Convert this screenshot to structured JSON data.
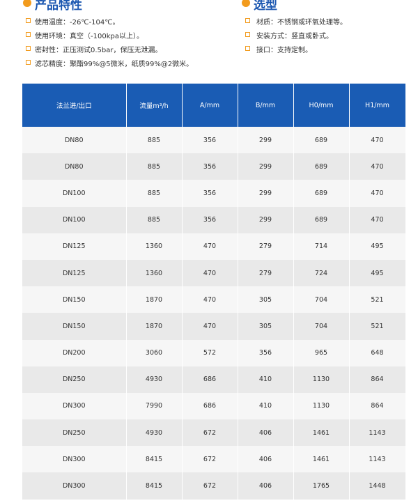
{
  "left": {
    "title": "产品特性",
    "items": [
      "使用温度：-26℃-104℃。",
      "使用环境：真空（-100kpa以上）。",
      "密封性：正压测试0.5bar，保压无泄漏。",
      "滤芯精度：聚酯99%@5微米，纸质99%@2微米。"
    ]
  },
  "right": {
    "title": "选型",
    "items": [
      "材质：不锈钢或环氧处理等。",
      "安装方式：竖直或卧式。",
      "接口：支持定制。"
    ]
  },
  "table": {
    "header": [
      "法兰进/出口",
      "流量m³/h",
      "A/mm",
      "B/mm",
      "H0/mm",
      "H1/mm"
    ],
    "rows": [
      [
        "DN80",
        "885",
        "356",
        "299",
        "689",
        "470"
      ],
      [
        "DN80",
        "885",
        "356",
        "299",
        "689",
        "470"
      ],
      [
        "DN100",
        "885",
        "356",
        "299",
        "689",
        "470"
      ],
      [
        "DN100",
        "885",
        "356",
        "299",
        "689",
        "470"
      ],
      [
        "DN125",
        "1360",
        "470",
        "279",
        "714",
        "495"
      ],
      [
        "DN125",
        "1360",
        "470",
        "279",
        "724",
        "495"
      ],
      [
        "DN150",
        "1870",
        "470",
        "305",
        "704",
        "521"
      ],
      [
        "DN150",
        "1870",
        "470",
        "305",
        "704",
        "521"
      ],
      [
        "DN200",
        "3060",
        "572",
        "356",
        "965",
        "648"
      ],
      [
        "DN250",
        "4930",
        "686",
        "410",
        "1130",
        "864"
      ],
      [
        "DN300",
        "7990",
        "686",
        "410",
        "1130",
        "864"
      ],
      [
        "DN250",
        "4930",
        "672",
        "406",
        "1461",
        "1143"
      ],
      [
        "DN300",
        "8415",
        "672",
        "406",
        "1461",
        "1143"
      ],
      [
        "DN300",
        "8415",
        "672",
        "406",
        "1765",
        "1448"
      ]
    ]
  }
}
